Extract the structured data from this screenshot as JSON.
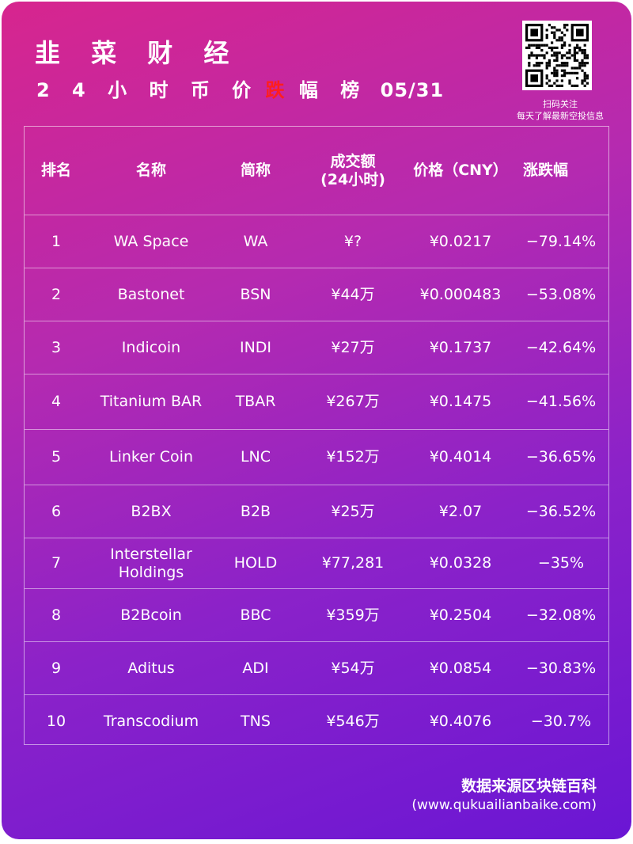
{
  "header": {
    "brand": "韭 菜 财 经",
    "subtitle_prefix": "2 4 小 时 币 价",
    "subtitle_highlight": "跌",
    "subtitle_suffix": "幅 榜",
    "date": "05/31"
  },
  "qr": {
    "caption_line1": "扫码关注",
    "caption_line2": "每天了解最新空投信息"
  },
  "table": {
    "columns": [
      "排名",
      "名称",
      "简称",
      "成交额\n(24小时)",
      "价格（CNY）",
      "涨跌幅"
    ],
    "rows": [
      [
        "1",
        "WA Space",
        "WA",
        "¥?",
        "¥0.0217",
        "−79.14%"
      ],
      [
        "2",
        "Bastonet",
        "BSN",
        "¥44万",
        "¥0.000483",
        "−53.08%"
      ],
      [
        "3",
        "Indicoin",
        "INDI",
        "¥27万",
        "¥0.1737",
        "−42.64%"
      ],
      [
        "4",
        "Titanium BAR",
        "TBAR",
        "¥267万",
        "¥0.1475",
        "−41.56%"
      ],
      [
        "5",
        "Linker Coin",
        "LNC",
        "¥152万",
        "¥0.4014",
        "−36.65%"
      ],
      [
        "6",
        "B2BX",
        "B2B",
        "¥25万",
        "¥2.07",
        "−36.52%"
      ],
      [
        "7",
        "Interstellar\nHoldings",
        "HOLD",
        "¥77,281",
        "¥0.0328",
        "−35%"
      ],
      [
        "8",
        "B2Bcoin",
        "BBC",
        "¥359万",
        "¥0.2504",
        "−32.08%"
      ],
      [
        "9",
        "Aditus",
        "ADI",
        "¥54万",
        "¥0.0854",
        "−30.83%"
      ],
      [
        "10",
        "Transcodium",
        "TNS",
        "¥546万",
        "¥0.4076",
        "−30.7%"
      ]
    ]
  },
  "footer": {
    "source": "数据来源区块链百科",
    "url": "(www.qukuailianbaike.com)"
  },
  "colors": {
    "gradient_start": "#d7258e",
    "gradient_end": "#6a16d4",
    "highlight": "#ff1e1e"
  }
}
